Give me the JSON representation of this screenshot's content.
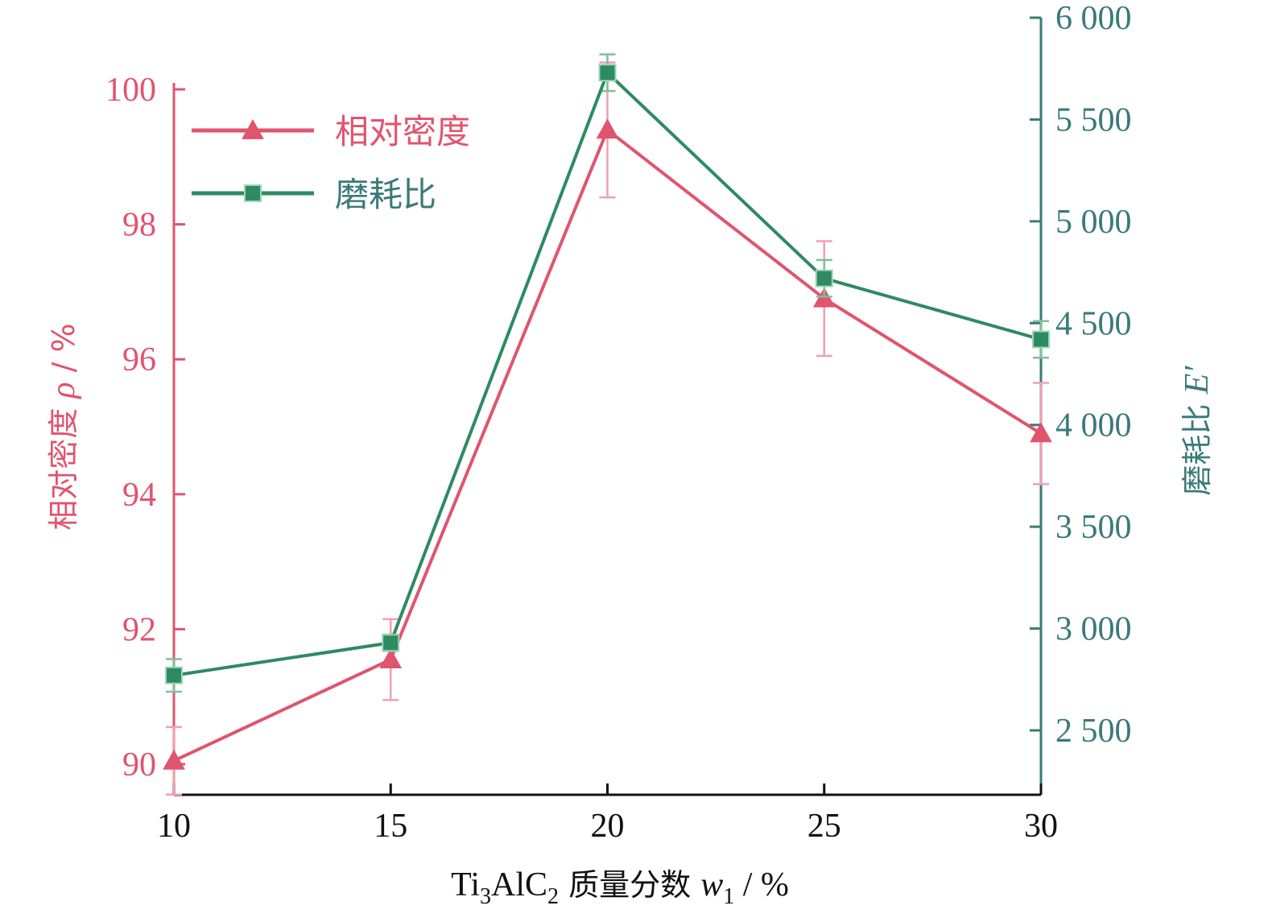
{
  "chart_data": {
    "type": "line",
    "x": [
      10,
      15,
      20,
      25,
      30
    ],
    "xlabel": {
      "parts": [
        "Ti",
        "3",
        "AlC",
        "2",
        " 质量分数 ",
        "w",
        "1",
        " / %"
      ]
    },
    "x_ticks": [
      "10",
      "15",
      "20",
      "25",
      "30"
    ],
    "xlim": [
      10,
      30
    ],
    "y_left": {
      "label_text": "相对密度 ",
      "label_symbol": "ρ",
      "label_unit": " / %",
      "ylim": [
        89.6,
        100.6
      ],
      "ticks": [
        90,
        92,
        94,
        96,
        98,
        100
      ],
      "tick_labels": [
        "90",
        "92",
        "94",
        "96",
        "98",
        "100"
      ],
      "color": "#e0546e"
    },
    "y_right": {
      "label_text": "磨耗比 ",
      "label_symbol": "E′",
      "ylim": [
        2200,
        6000
      ],
      "ticks": [
        2500,
        3000,
        3500,
        4000,
        4500,
        5000,
        5500,
        6000
      ],
      "tick_labels": [
        "2 500",
        "3 000",
        "3 500",
        "4 000",
        "4 500",
        "5 000",
        "5 500",
        "6 000"
      ],
      "color": "#3a7a78"
    },
    "series": [
      {
        "name": "相对密度",
        "axis": "left",
        "marker": "triangle",
        "color": "#e0546e",
        "values": [
          90.05,
          91.55,
          99.4,
          96.9,
          94.9
        ],
        "errors": [
          0.5,
          0.6,
          1.0,
          0.85,
          0.75
        ]
      },
      {
        "name": "磨耗比",
        "axis": "right",
        "marker": "square",
        "color": "#2e8a62",
        "values": [
          2770,
          2930,
          5730,
          4720,
          4420
        ],
        "errors": [
          80,
          40,
          90,
          90,
          90
        ]
      }
    ],
    "legend": "top-left",
    "grid": false
  }
}
